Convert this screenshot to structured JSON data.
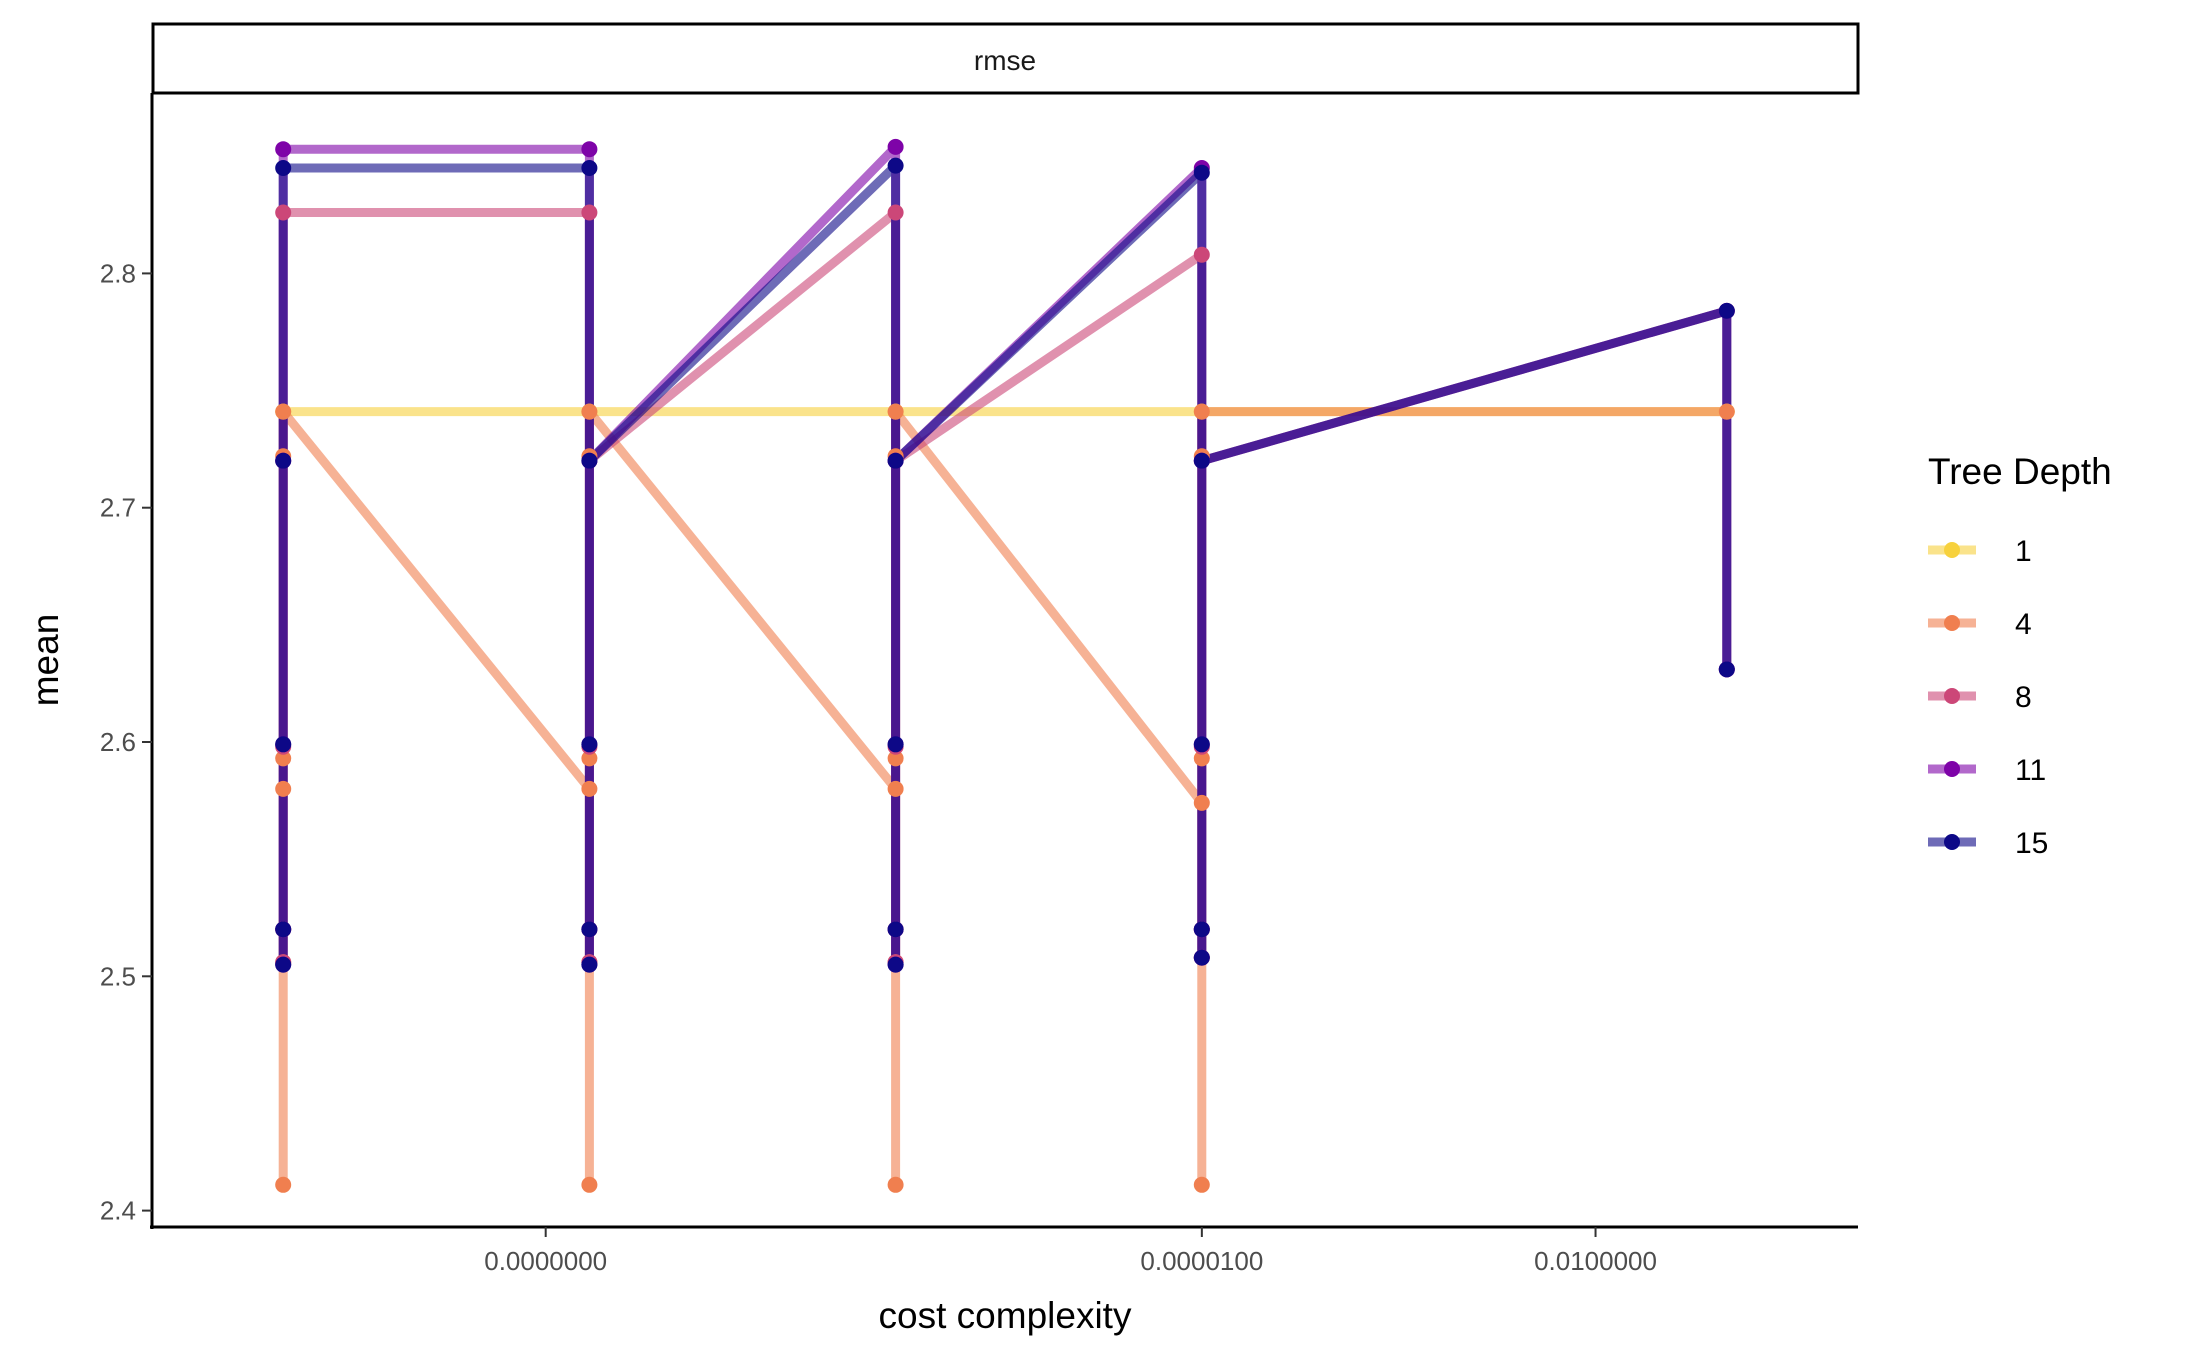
{
  "chart_data": {
    "type": "line",
    "facet_label": "rmse",
    "xlabel": "cost complexity",
    "ylabel": "mean",
    "x_scale": "log10",
    "x_ticks": [
      {
        "value": 1e-10,
        "label": "0.0000000"
      },
      {
        "value": 1e-05,
        "label": "0.0000100"
      },
      {
        "value": 0.01,
        "label": "0.0100000"
      }
    ],
    "y_ticks": [
      {
        "value": 2.4,
        "label": "2.4"
      },
      {
        "value": 2.5,
        "label": "2.5"
      },
      {
        "value": 2.6,
        "label": "2.6"
      },
      {
        "value": 2.7,
        "label": "2.7"
      },
      {
        "value": 2.8,
        "label": "2.8"
      }
    ],
    "xlim": [
      1e-13,
      1.0
    ],
    "ylim": [
      2.393,
      2.877
    ],
    "legend_title": "Tree Depth",
    "legend_position": "right",
    "grid": false,
    "x": [
      1e-12,
      2.154e-10,
      4.642e-08,
      1e-05,
      0.1
    ],
    "series": [
      {
        "name": "1",
        "color": "#F7D13D",
        "points": [
          [
            1e-12,
            2.741
          ],
          [
            2.154e-10,
            2.741
          ],
          [
            4.642e-08,
            2.741
          ],
          [
            1e-05,
            2.741
          ],
          [
            0.1,
            2.741
          ]
        ]
      },
      {
        "name": "4",
        "color": "#F07F4F",
        "points": [
          [
            1e-12,
            2.411
          ],
          [
            1e-12,
            2.506
          ],
          [
            1e-12,
            2.52
          ],
          [
            1e-12,
            2.58
          ],
          [
            1e-12,
            2.593
          ],
          [
            1e-12,
            2.722
          ],
          [
            1e-12,
            2.741
          ],
          [
            2.154e-10,
            2.58
          ],
          [
            2.154e-10,
            2.411
          ],
          [
            2.154e-10,
            2.506
          ],
          [
            2.154e-10,
            2.52
          ],
          [
            2.154e-10,
            2.593
          ],
          [
            2.154e-10,
            2.722
          ],
          [
            2.154e-10,
            2.741
          ],
          [
            4.642e-08,
            2.58
          ],
          [
            4.642e-08,
            2.411
          ],
          [
            4.642e-08,
            2.506
          ],
          [
            4.642e-08,
            2.52
          ],
          [
            4.642e-08,
            2.593
          ],
          [
            4.642e-08,
            2.722
          ],
          [
            4.642e-08,
            2.741
          ],
          [
            1e-05,
            2.574
          ],
          [
            1e-05,
            2.411
          ],
          [
            1e-05,
            2.508
          ],
          [
            1e-05,
            2.52
          ],
          [
            1e-05,
            2.593
          ],
          [
            1e-05,
            2.722
          ],
          [
            1e-05,
            2.741
          ],
          [
            0.1,
            2.741
          ]
        ]
      },
      {
        "name": "8",
        "color": "#CC4778",
        "points": [
          [
            1e-12,
            2.506
          ],
          [
            1e-12,
            2.52
          ],
          [
            1e-12,
            2.598
          ],
          [
            1e-12,
            2.72
          ],
          [
            1e-12,
            2.826
          ],
          [
            2.154e-10,
            2.826
          ],
          [
            2.154e-10,
            2.506
          ],
          [
            2.154e-10,
            2.52
          ],
          [
            2.154e-10,
            2.598
          ],
          [
            2.154e-10,
            2.72
          ],
          [
            4.642e-08,
            2.826
          ],
          [
            4.642e-08,
            2.506
          ],
          [
            4.642e-08,
            2.52
          ],
          [
            4.642e-08,
            2.598
          ],
          [
            4.642e-08,
            2.72
          ],
          [
            1e-05,
            2.808
          ],
          [
            1e-05,
            2.508
          ],
          [
            1e-05,
            2.52
          ],
          [
            1e-05,
            2.598
          ],
          [
            1e-05,
            2.72
          ],
          [
            0.1,
            2.784
          ],
          [
            0.1,
            2.631
          ]
        ]
      },
      {
        "name": "11",
        "color": "#7E03A8",
        "points": [
          [
            1e-12,
            2.505
          ],
          [
            1e-12,
            2.52
          ],
          [
            1e-12,
            2.599
          ],
          [
            1e-12,
            2.72
          ],
          [
            1e-12,
            2.853
          ],
          [
            2.154e-10,
            2.853
          ],
          [
            2.154e-10,
            2.505
          ],
          [
            2.154e-10,
            2.52
          ],
          [
            2.154e-10,
            2.599
          ],
          [
            2.154e-10,
            2.72
          ],
          [
            4.642e-08,
            2.854
          ],
          [
            4.642e-08,
            2.505
          ],
          [
            4.642e-08,
            2.52
          ],
          [
            4.642e-08,
            2.599
          ],
          [
            4.642e-08,
            2.72
          ],
          [
            1e-05,
            2.845
          ],
          [
            1e-05,
            2.508
          ],
          [
            1e-05,
            2.52
          ],
          [
            1e-05,
            2.599
          ],
          [
            1e-05,
            2.72
          ],
          [
            0.1,
            2.784
          ],
          [
            0.1,
            2.631
          ]
        ]
      },
      {
        "name": "15",
        "color": "#0D0887",
        "points": [
          [
            1e-12,
            2.505
          ],
          [
            1e-12,
            2.52
          ],
          [
            1e-12,
            2.599
          ],
          [
            1e-12,
            2.72
          ],
          [
            1e-12,
            2.845
          ],
          [
            2.154e-10,
            2.845
          ],
          [
            2.154e-10,
            2.505
          ],
          [
            2.154e-10,
            2.52
          ],
          [
            2.154e-10,
            2.599
          ],
          [
            2.154e-10,
            2.72
          ],
          [
            4.642e-08,
            2.846
          ],
          [
            4.642e-08,
            2.505
          ],
          [
            4.642e-08,
            2.52
          ],
          [
            4.642e-08,
            2.599
          ],
          [
            4.642e-08,
            2.72
          ],
          [
            1e-05,
            2.843
          ],
          [
            1e-05,
            2.508
          ],
          [
            1e-05,
            2.52
          ],
          [
            1e-05,
            2.599
          ],
          [
            1e-05,
            2.72
          ],
          [
            0.1,
            2.784
          ],
          [
            0.1,
            2.631
          ]
        ]
      }
    ]
  }
}
